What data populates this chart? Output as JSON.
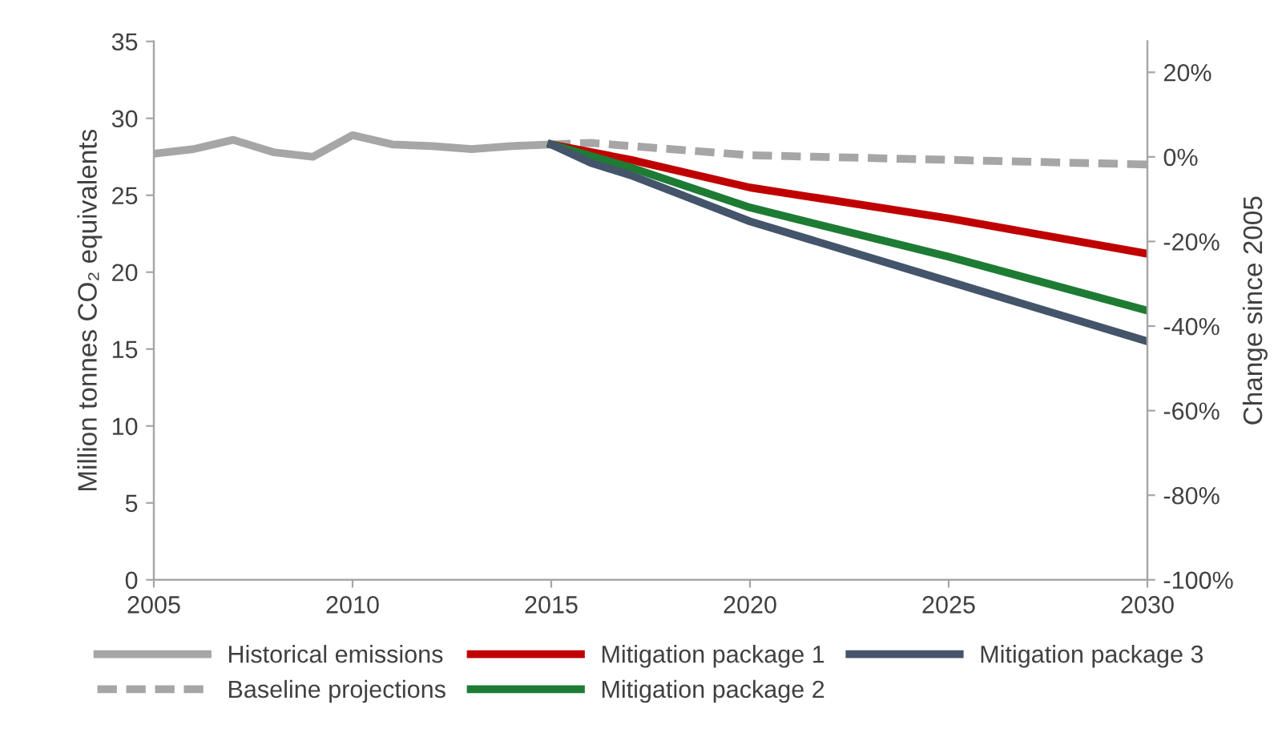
{
  "chart_data": {
    "type": "line",
    "ylabel": "Million tonnes CO₂ equivalents",
    "y2label": "Change since 2005",
    "xlim": [
      2005,
      2030
    ],
    "xticks": [
      2005,
      2010,
      2015,
      2020,
      2025,
      2030
    ],
    "ylim": [
      0,
      35
    ],
    "yticks": [
      0,
      5,
      10,
      15,
      20,
      25,
      30,
      35
    ],
    "y2lim": [
      -100,
      27.3
    ],
    "y2ticks": [
      {
        "value": -100,
        "label": "-100%"
      },
      {
        "value": -80,
        "label": "-80%"
      },
      {
        "value": -60,
        "label": "-60%"
      },
      {
        "value": -40,
        "label": "-40%"
      },
      {
        "value": -20,
        "label": "-20%"
      },
      {
        "value": 0,
        "label": "0%"
      },
      {
        "value": 20,
        "label": "20%"
      }
    ],
    "grid": false,
    "legend": "bottom",
    "marker": "none",
    "series": [
      {
        "name": "Historical emissions",
        "color": "#a6a6a6",
        "line_style": "solid",
        "x": [
          2005,
          2006,
          2007,
          2008,
          2009,
          2010,
          2011,
          2012,
          2013,
          2014,
          2015
        ],
        "values": [
          27.7,
          28.0,
          28.6,
          27.8,
          27.5,
          28.9,
          28.3,
          28.2,
          28.0,
          28.2,
          28.3
        ]
      },
      {
        "name": "Baseline projections",
        "color": "#a6a6a6",
        "line_style": "dashed",
        "x": [
          2015,
          2016,
          2018,
          2020,
          2025,
          2030
        ],
        "values": [
          28.3,
          28.4,
          28.0,
          27.6,
          27.3,
          27.0
        ]
      },
      {
        "name": "Mitigation package 1",
        "color": "#c00000",
        "line_style": "solid",
        "x": [
          2015,
          2017,
          2020,
          2025,
          2030
        ],
        "values": [
          28.3,
          27.3,
          25.5,
          23.5,
          21.2
        ]
      },
      {
        "name": "Mitigation package 2",
        "color": "#1e7b34",
        "line_style": "solid",
        "x": [
          2015,
          2017,
          2020,
          2025,
          2030
        ],
        "values": [
          28.3,
          26.8,
          24.2,
          21.0,
          17.5
        ]
      },
      {
        "name": "Mitigation package 3",
        "color": "#44546a",
        "line_style": "solid",
        "x": [
          2015,
          2016,
          2017,
          2020,
          2025,
          2030
        ],
        "values": [
          28.3,
          27.1,
          26.3,
          23.3,
          19.4,
          15.5
        ]
      }
    ]
  }
}
